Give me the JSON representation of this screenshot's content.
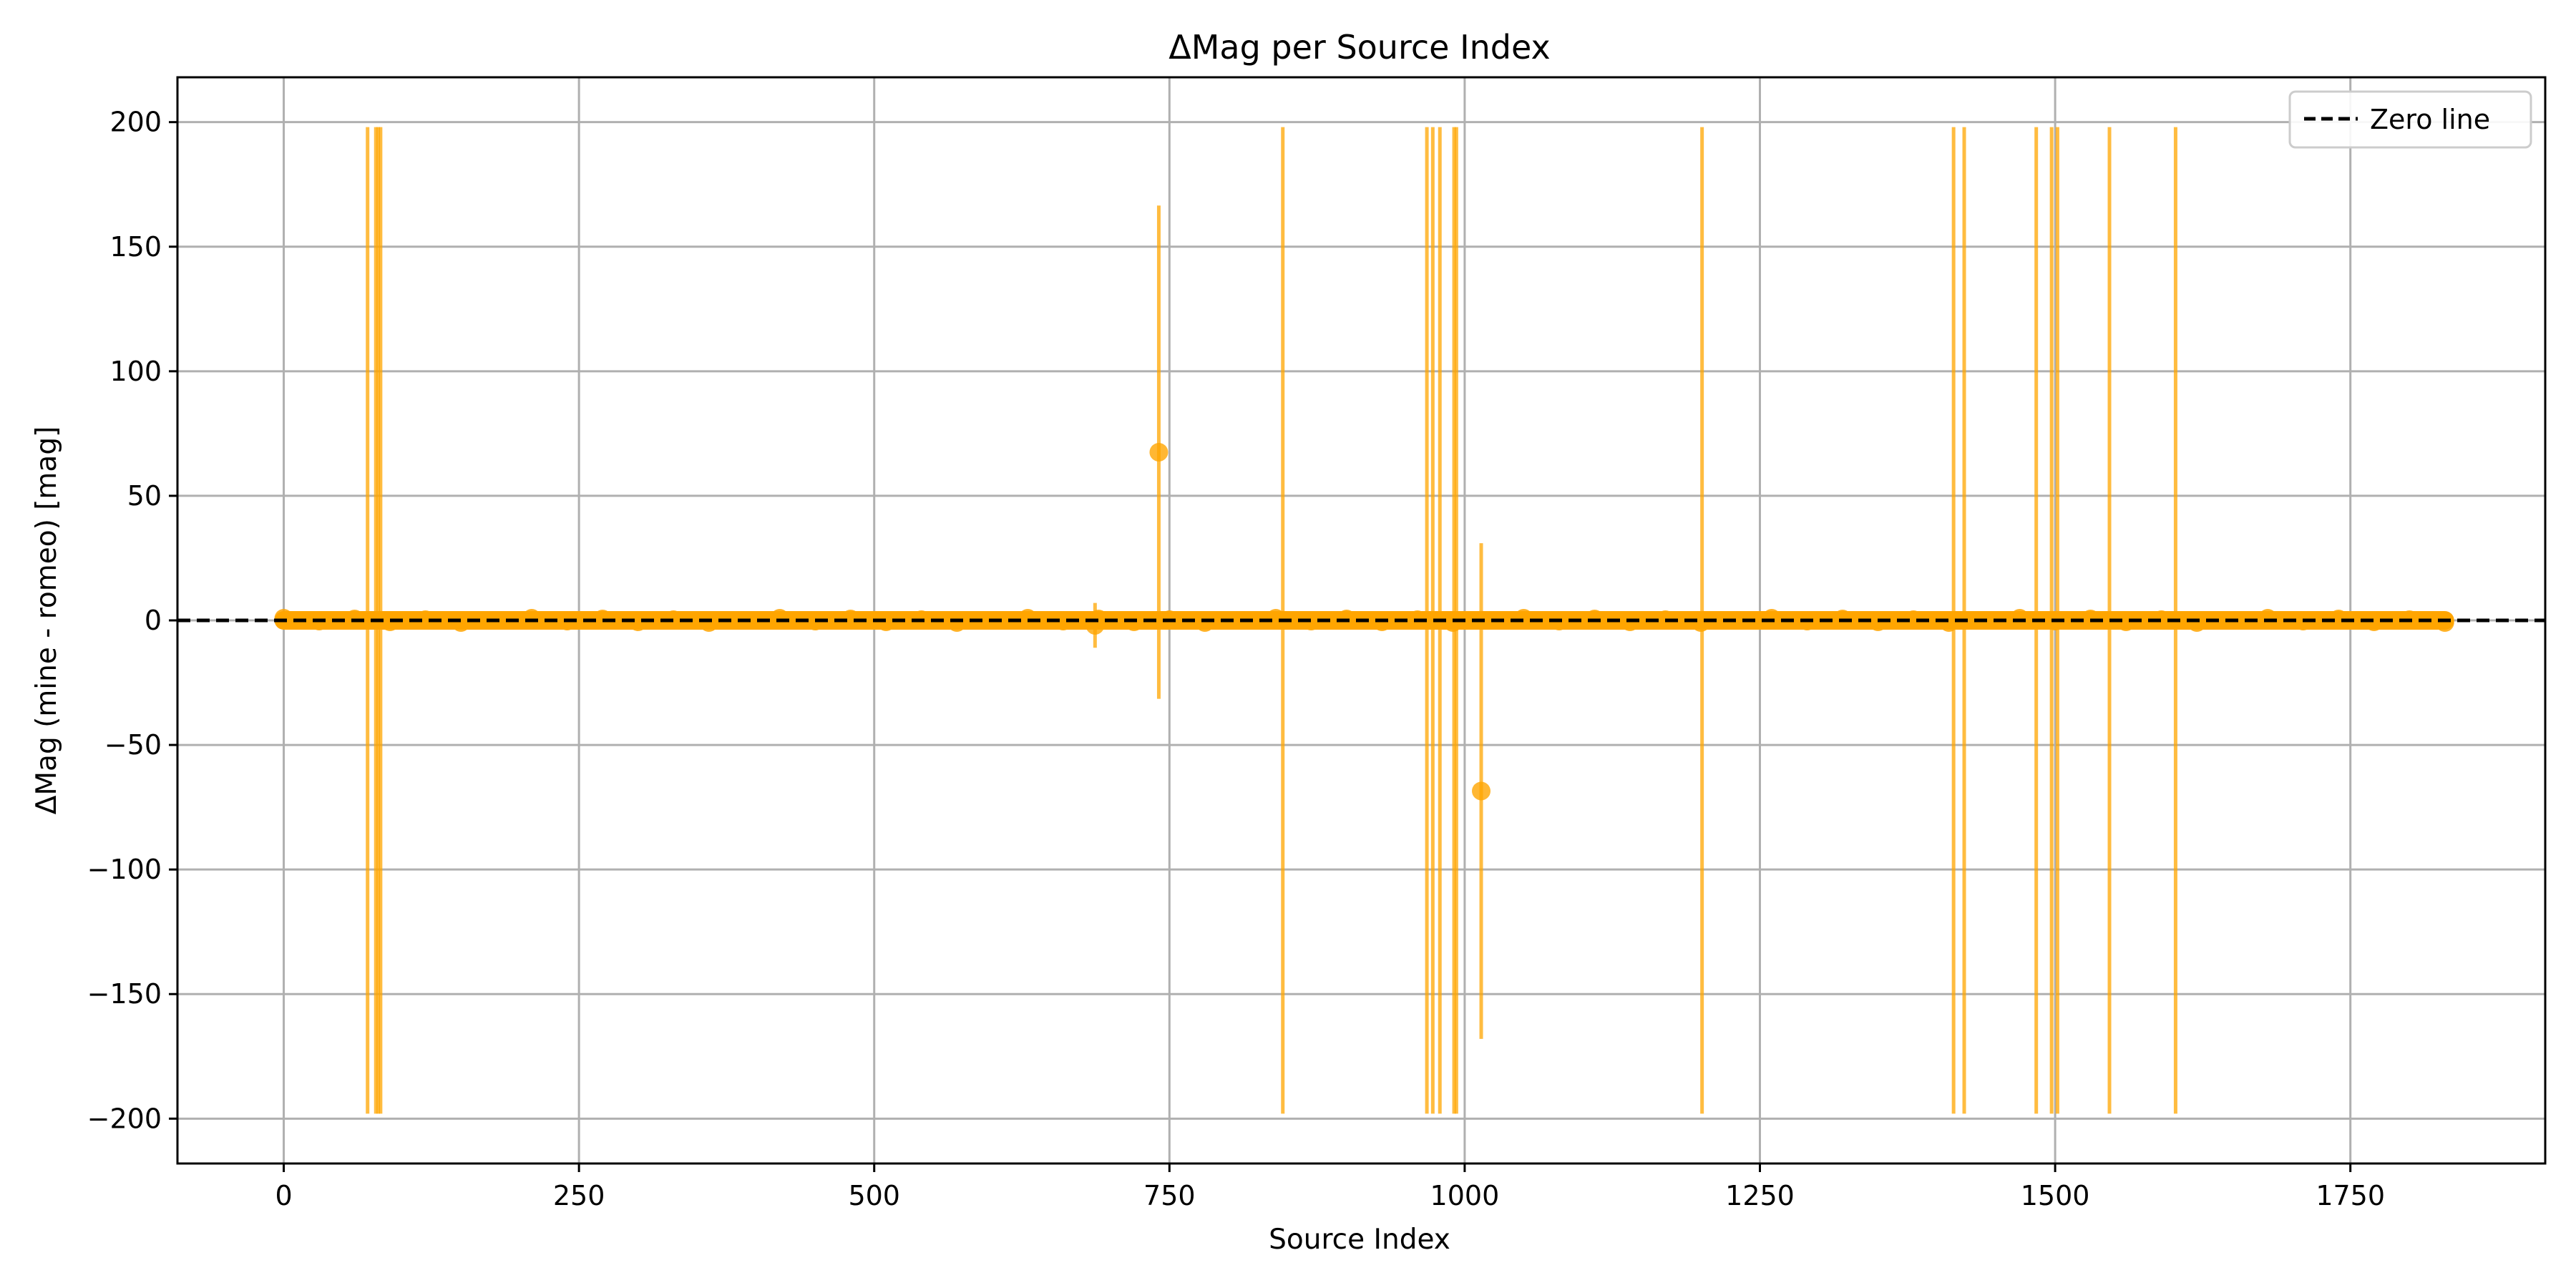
{
  "chart_data": {
    "type": "scatter",
    "title": "ΔMag per Source Index",
    "xlabel": "Source Index",
    "ylabel": "ΔMag (mine - romeo) [mag]",
    "xlim": [
      -90,
      1915
    ],
    "ylim": [
      -218,
      218
    ],
    "xticks": [
      0,
      250,
      500,
      750,
      1000,
      1250,
      1500,
      1750
    ],
    "yticks": [
      200,
      150,
      100,
      50,
      0,
      -50,
      -100,
      -150,
      -200
    ],
    "xtick_labels": [
      "0",
      "250",
      "500",
      "750",
      "1000",
      "1250",
      "1500",
      "1750"
    ],
    "ytick_labels": [
      "200",
      "150",
      "100",
      "50",
      "0",
      "−50",
      "−100",
      "−150",
      "−200"
    ],
    "grid": true,
    "legend_position": "top-right",
    "point_color": "#ffa500",
    "errorbar_color": "#ffa500",
    "zero_line_color": "#000000",
    "series": [
      {
        "kind": "dense-band",
        "x_range": [
          0,
          1830
        ],
        "y": 0
      },
      {
        "kind": "errorbars",
        "points": [
          {
            "x": 71,
            "y": 0,
            "yerr": 198
          },
          {
            "x": 78,
            "y": 0,
            "yerr": 198
          },
          {
            "x": 80,
            "y": 0,
            "yerr": 198
          },
          {
            "x": 82,
            "y": 0,
            "yerr": 198
          },
          {
            "x": 687,
            "y": -2,
            "yerr": 9
          },
          {
            "x": 741,
            "y": 67.5,
            "yerr": 99
          },
          {
            "x": 846,
            "y": 0,
            "yerr": 198
          },
          {
            "x": 968,
            "y": 0,
            "yerr": 198
          },
          {
            "x": 973,
            "y": 0,
            "yerr": 198
          },
          {
            "x": 979,
            "y": 0,
            "yerr": 198
          },
          {
            "x": 991,
            "y": 0,
            "yerr": 198
          },
          {
            "x": 993,
            "y": 0,
            "yerr": 198
          },
          {
            "x": 1014,
            "y": -68.5,
            "yerr": 99.5
          },
          {
            "x": 1201,
            "y": 0,
            "yerr": 198
          },
          {
            "x": 1414,
            "y": 0,
            "yerr": 198
          },
          {
            "x": 1423,
            "y": 0,
            "yerr": 198
          },
          {
            "x": 1484,
            "y": 0,
            "yerr": 198
          },
          {
            "x": 1497,
            "y": 0,
            "yerr": 198
          },
          {
            "x": 1502,
            "y": 0,
            "yerr": 198
          },
          {
            "x": 1546,
            "y": 0,
            "yerr": 198
          },
          {
            "x": 1602,
            "y": 0,
            "yerr": 198
          }
        ]
      },
      {
        "kind": "zero-line",
        "name": "Zero line",
        "y": 0
      }
    ]
  }
}
